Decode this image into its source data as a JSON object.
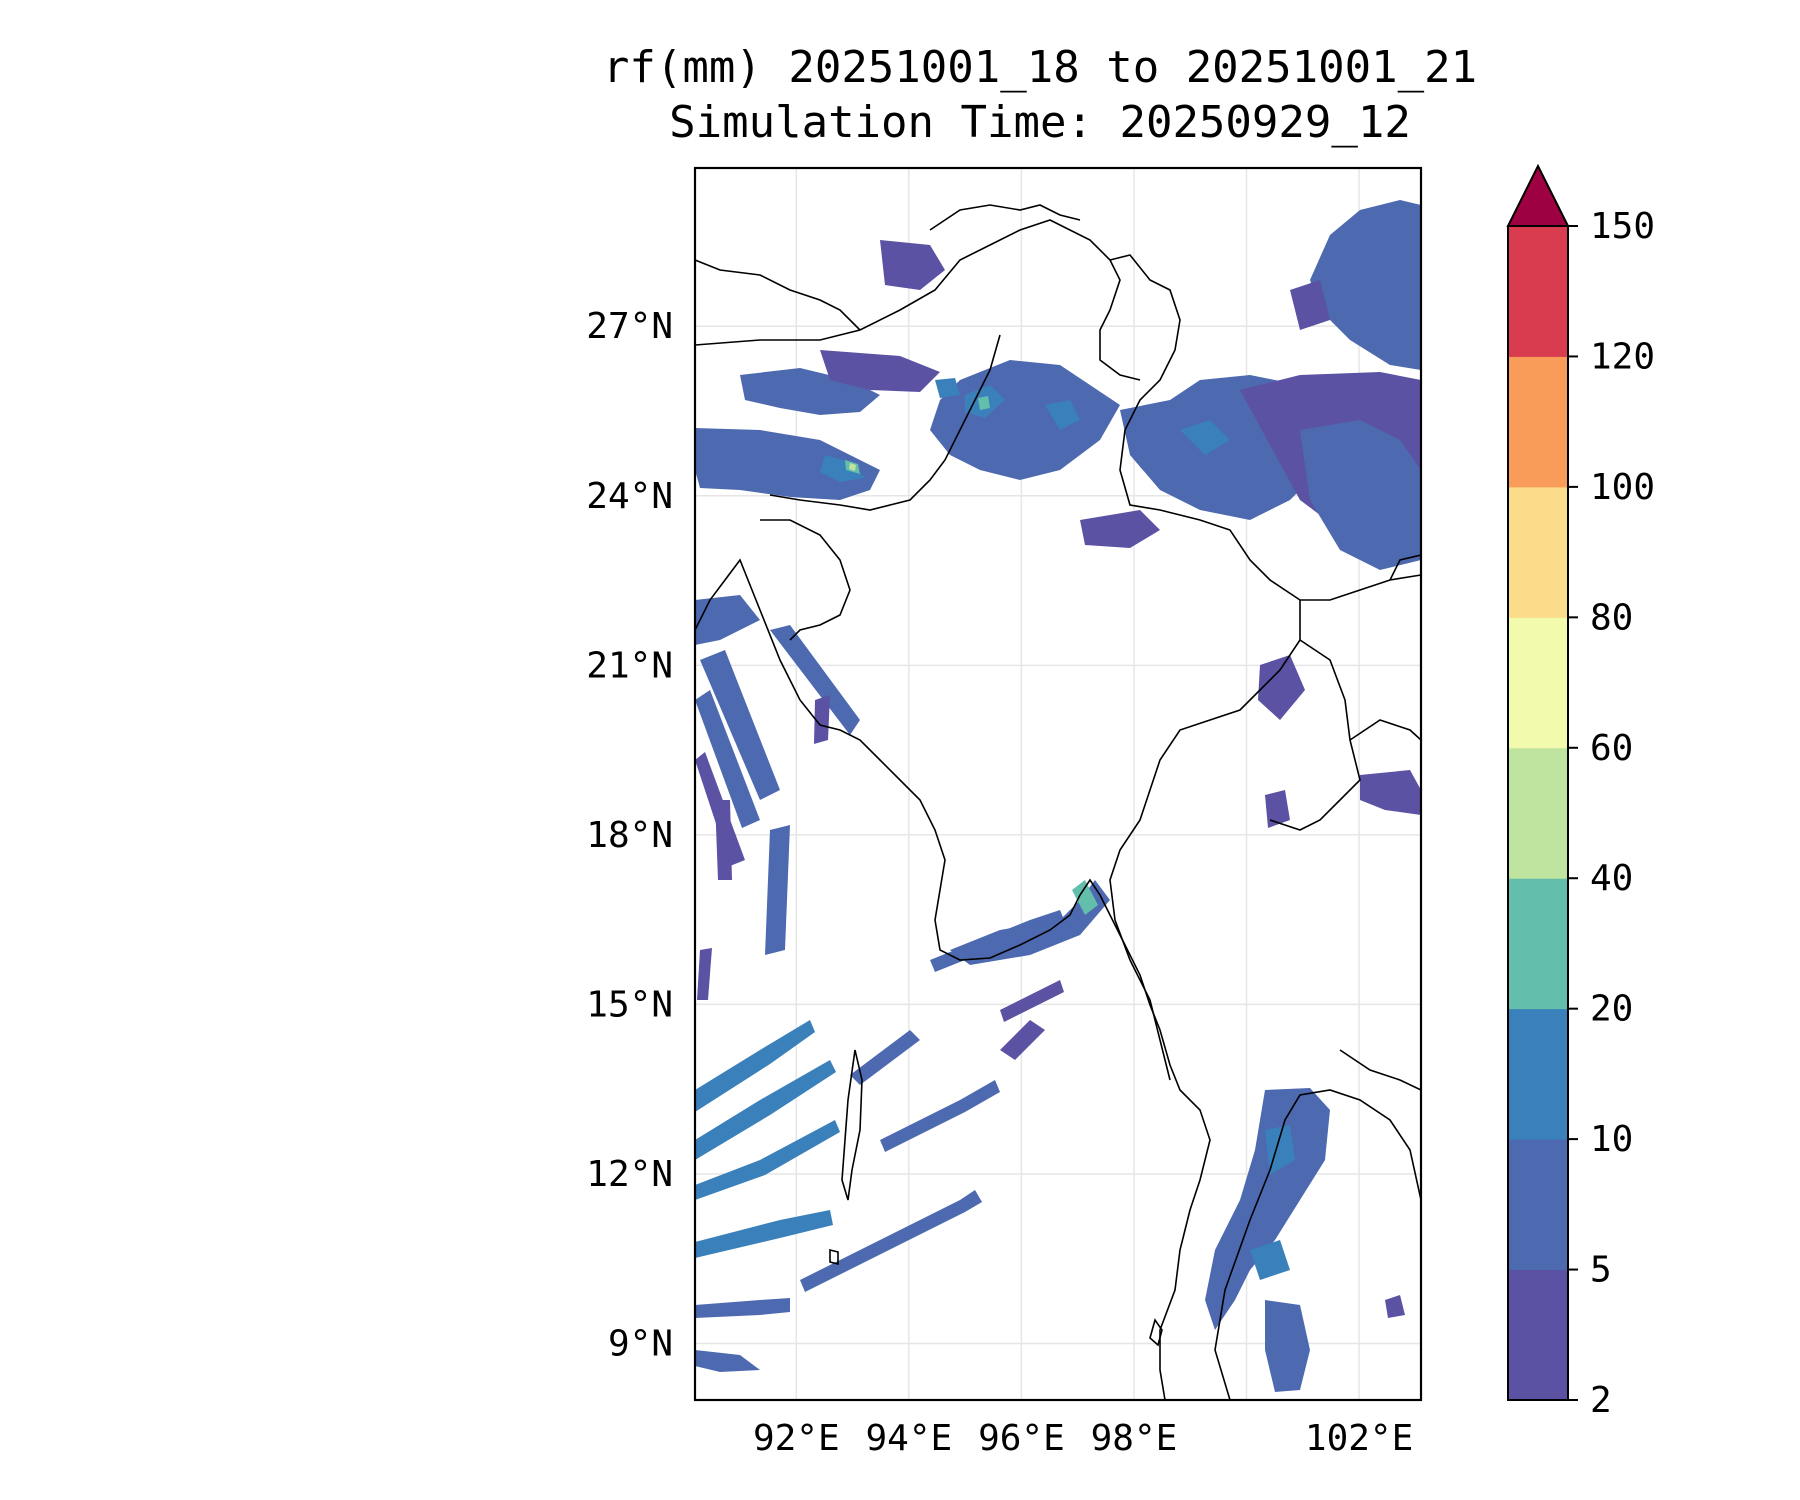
{
  "title": {
    "line1": "rf(mm) 20251001_18 to 20251001_21",
    "line2": "Simulation Time: 20250929_12"
  },
  "map": {
    "lat_labels": [
      "27°N",
      "24°N",
      "21°N",
      "18°N",
      "15°N",
      "12°N",
      "9°N"
    ],
    "lon_labels": [
      "92°E",
      "94°E",
      "96°E",
      "98°E",
      "102°E"
    ],
    "lat_range": [
      8.0,
      29.8
    ],
    "lon_range": [
      90.2,
      103.1
    ],
    "lat_ticks": [
      27,
      24,
      21,
      18,
      15,
      12,
      9
    ],
    "lon_ticks": [
      92,
      94,
      96,
      98,
      102
    ],
    "gridlines": true
  },
  "colorbar": {
    "levels": [
      "2",
      "5",
      "10",
      "20",
      "40",
      "60",
      "80",
      "100",
      "120",
      "150"
    ],
    "colors": [
      "#5b52a3",
      "#4d69b0",
      "#3a80ba",
      "#63bfab",
      "#bfe4a0",
      "#f2faae",
      "#fbdc8b",
      "#f99b59",
      "#d83c4e",
      "#9e0142"
    ],
    "extend": "max"
  }
}
